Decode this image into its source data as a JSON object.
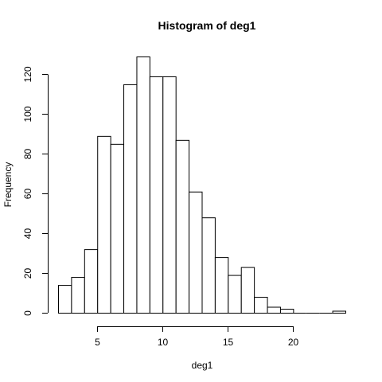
{
  "chart_data": {
    "type": "bar",
    "title": "Histogram of deg1",
    "xlabel": "deg1",
    "ylabel": "Frequency",
    "bin_edges": [
      2,
      3,
      4,
      5,
      6,
      7,
      8,
      9,
      10,
      11,
      12,
      13,
      14,
      15,
      16,
      17,
      18,
      19,
      20,
      21,
      22,
      23,
      24
    ],
    "values": [
      14,
      18,
      32,
      89,
      85,
      115,
      129,
      119,
      119,
      87,
      61,
      48,
      28,
      19,
      23,
      8,
      3,
      2,
      0,
      0,
      0,
      1
    ],
    "x_ticks": [
      5,
      10,
      15,
      20
    ],
    "x_tick_labels": [
      "5",
      "10",
      "15",
      "20"
    ],
    "y_ticks": [
      0,
      20,
      40,
      60,
      80,
      100,
      120
    ],
    "y_tick_labels": [
      "0",
      "20",
      "40",
      "60",
      "80",
      "100",
      "120"
    ],
    "xlim": [
      2,
      24
    ],
    "ylim": [
      0,
      129
    ],
    "grid": false,
    "legend": "none"
  },
  "colors": {
    "bar_fill": "#ffffff",
    "bar_stroke": "#000000",
    "axis": "#000000"
  }
}
